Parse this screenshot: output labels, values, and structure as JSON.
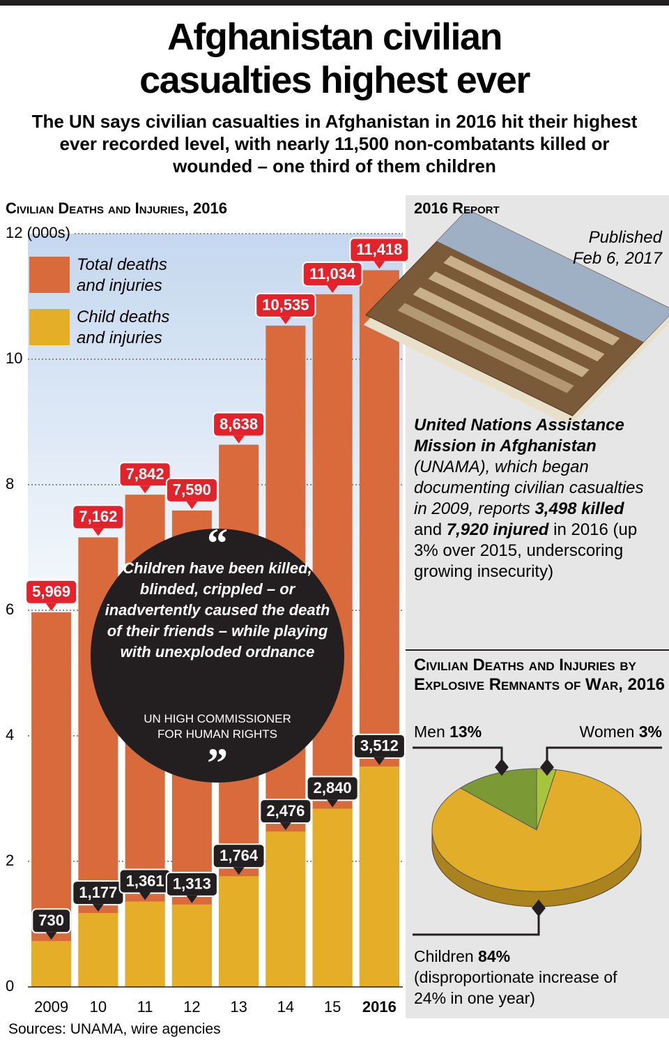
{
  "title": "Afghanistan civilian casualties highest ever",
  "subtitle": "The UN says civilian casualties in Afghanistan in 2016 hit their highest ever recorded level, with nearly 11,500 non-combatants killed or wounded – one third of them children",
  "sources": "Sources: UNAMA, wire agencies",
  "quote": {
    "open_mark": "“",
    "text": "Children have been killed, blinded, crippled – or inadvertently caused the death of their friends – while playing with unexploded ordnance",
    "attribution": "UN HIGH COMMISSIONER FOR HUMAN RIGHTS",
    "close_mark": "”"
  },
  "report": {
    "heading": "2016 Report",
    "published": "Published Feb 6, 2017",
    "body": [
      "United Nations Assistance Mission in Afghanistan",
      " (UNAMA), which began documenting civilian casualties in 2009, reports ",
      "3,498 killed",
      " and ",
      "7,920 injured",
      " in 2016 (up 3% over 2015, underscoring growing insecurity)"
    ]
  },
  "chart_data": [
    {
      "type": "bar",
      "title": "Civilian Deaths and Injuries, 2016",
      "categories": [
        "2009",
        "10",
        "11",
        "12",
        "13",
        "14",
        "15",
        "2016"
      ],
      "series": [
        {
          "name": "Total deaths and injuries",
          "color": "#d96a3b",
          "label_color": "#e3232c",
          "values": [
            5.969,
            7.162,
            7.842,
            7.59,
            8.638,
            10.535,
            11.034,
            11.418
          ],
          "value_labels": [
            "5,969",
            "7,162",
            "7,842",
            "7,590",
            "8,638",
            "10,535",
            "11,034",
            "11,418"
          ]
        },
        {
          "name": "Child deaths and injuries",
          "color": "#e4ae29",
          "label_color": "#231f20",
          "values": [
            0.73,
            1.177,
            1.361,
            1.313,
            1.764,
            2.476,
            2.84,
            3.512
          ],
          "value_labels": [
            "730",
            "1,177",
            "1,361",
            "1,313",
            "1,764",
            "2,476",
            "2,840",
            "3,512"
          ]
        }
      ],
      "ylim": [
        0,
        12
      ],
      "yticks": [
        0,
        2,
        4,
        6,
        8,
        10,
        {
          "value": 12,
          "label": "12 (000s)"
        }
      ],
      "grid": true
    },
    {
      "type": "pie",
      "title": "Civilian Deaths and Injuries by Explosive Remnants of War, 2016",
      "categories": [
        "Men",
        "Women",
        "Children"
      ],
      "values": [
        13,
        3,
        84
      ],
      "value_labels": [
        "13%",
        "3%",
        "84%"
      ],
      "colors": [
        "#7b9a36",
        "#a8c43c",
        "#e2ad28"
      ],
      "annotation": "(disproportionate increase of 24% in one year)"
    }
  ]
}
